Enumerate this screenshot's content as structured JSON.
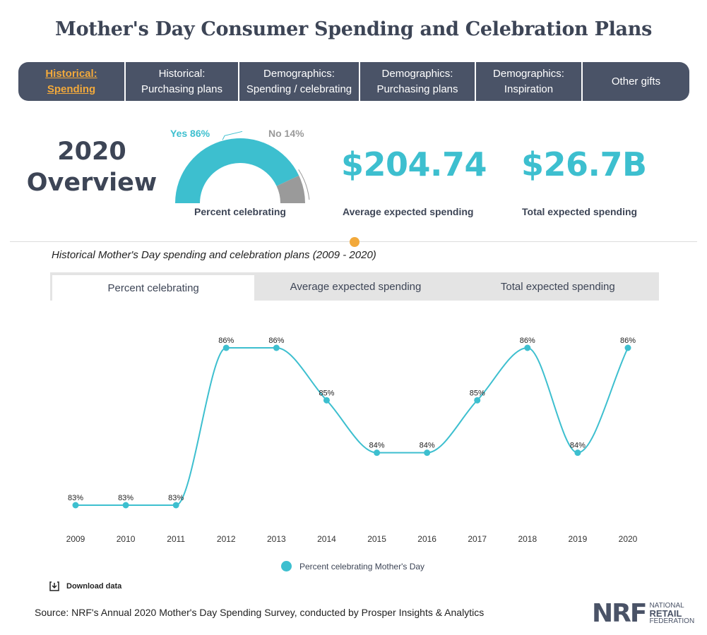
{
  "title": "Mother's Day Consumer Spending and Celebration Plans",
  "nav": {
    "tabs": [
      {
        "line1": "Historical:",
        "line2": "Spending",
        "active": true
      },
      {
        "line1": "Historical:",
        "line2": "Purchasing plans",
        "active": false
      },
      {
        "line1": "Demographics:",
        "line2": "Spending / celebrating",
        "active": false
      },
      {
        "line1": "Demographics:",
        "line2": "Purchasing plans",
        "active": false
      },
      {
        "line1": "Demographics:",
        "line2": "Inspiration",
        "active": false
      },
      {
        "line1": "Other gifts",
        "line2": "",
        "active": false
      }
    ]
  },
  "overview": {
    "line1": "2020",
    "line2": "Overview",
    "gauge": {
      "yes_label": "Yes 86%",
      "no_label": "No 14%",
      "yes_value": 86,
      "no_value": 14,
      "caption": "Percent celebrating",
      "yes_color": "#3dbfcf",
      "no_color": "#9a9a9a"
    },
    "avg_spending": {
      "value": "$204.74",
      "caption": "Average expected spending"
    },
    "total_spending": {
      "value": "$26.7B",
      "caption": "Total expected spending"
    }
  },
  "chart_subtitle": "Historical Mother's Day spending and celebration plans (2009 - 2020)",
  "chart_tabs": [
    {
      "label": "Percent celebrating",
      "active": true
    },
    {
      "label": "Average expected spending",
      "active": false
    },
    {
      "label": "Total expected spending",
      "active": false
    }
  ],
  "chart_data": {
    "type": "line",
    "x": [
      "2009",
      "2010",
      "2011",
      "2012",
      "2013",
      "2014",
      "2015",
      "2016",
      "2017",
      "2018",
      "2019",
      "2020"
    ],
    "series": [
      {
        "name": "Percent celebrating Mother's Day",
        "values": [
          83,
          83,
          83,
          86,
          86,
          85,
          84,
          84,
          85,
          86,
          84,
          86
        ]
      }
    ],
    "value_suffix": "%",
    "ylim": [
      83,
      86
    ],
    "grid": false,
    "legend": "bottom-center",
    "color": "#3dbfcf",
    "title": "",
    "xlabel": "",
    "ylabel": ""
  },
  "download_label": "Download data",
  "source": "Source: NRF's Annual 2020 Mother's Day Spending Survey, conducted by Prosper Insights & Analytics",
  "logo": {
    "mark": "NRF",
    "line1": "NATIONAL",
    "line2": "RETAIL",
    "line3": "FEDERATION"
  }
}
